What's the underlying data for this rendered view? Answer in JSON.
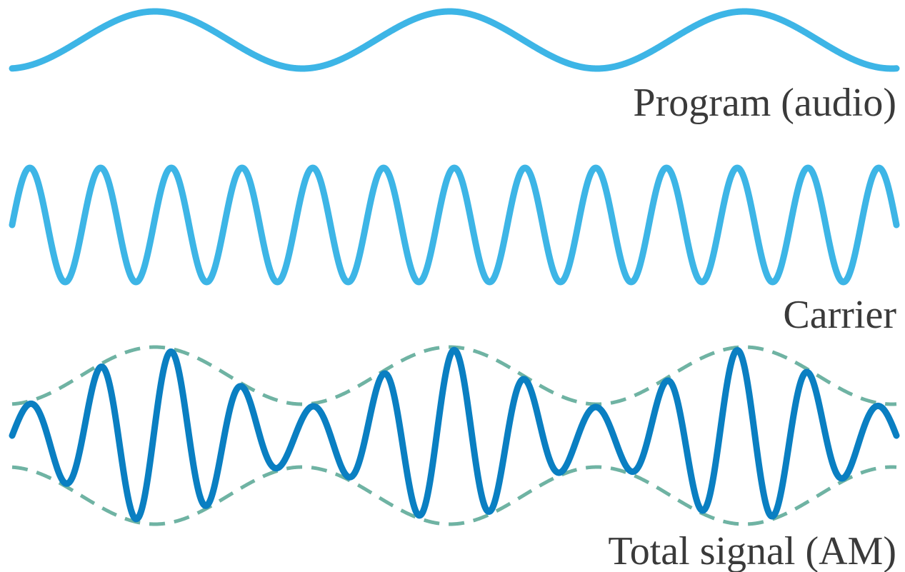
{
  "labels": {
    "program": "Program (audio)",
    "carrier": "Carrier",
    "total": "Total signal (AM)"
  },
  "waves": {
    "program": {
      "description_name": "program-wave",
      "cycles": 3,
      "color": "#3db5e6"
    },
    "carrier": {
      "description_name": "carrier-wave",
      "cycles": 12.5,
      "color": "#3db5e6"
    },
    "total": {
      "description_name": "am-signal-wave",
      "carrier_cycles": 12.5,
      "envelope_cycles": 3,
      "modulation_depth": 0.5,
      "color": "#0a7fc2",
      "envelope_color": "#6fb3a3"
    }
  }
}
